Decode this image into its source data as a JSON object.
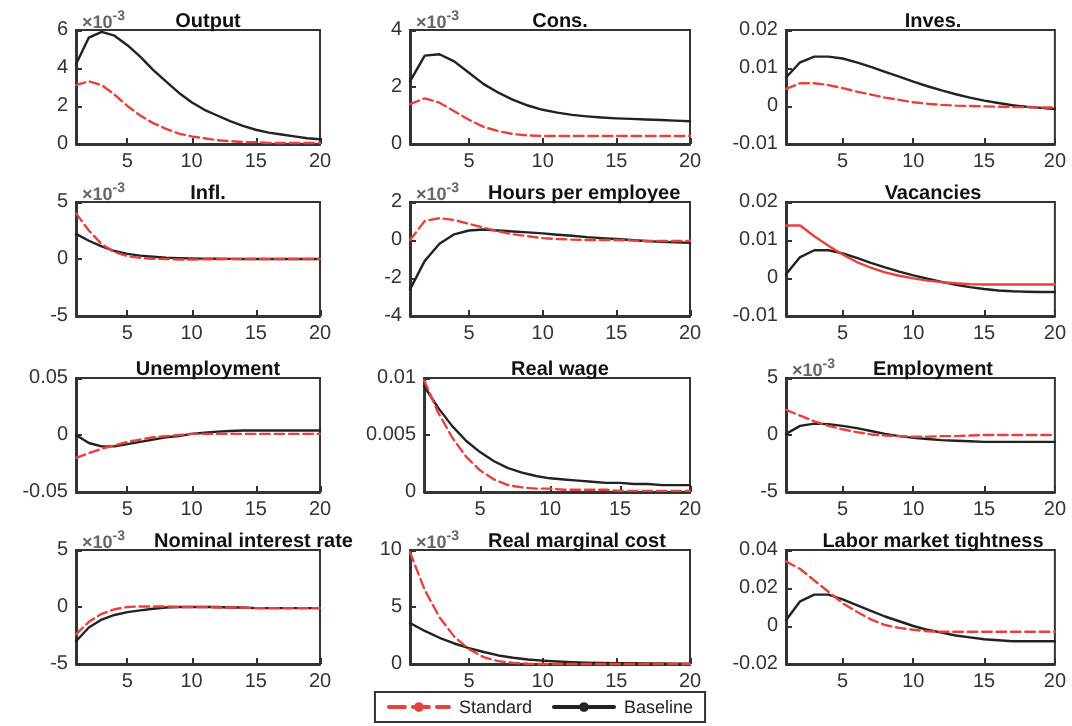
{
  "chart_data": [
    {
      "type": "line",
      "title": "Output",
      "annotations": [
        "×10$^{-3}$"
      ],
      "x": [
        1,
        2,
        3,
        4,
        5,
        6,
        7,
        8,
        9,
        10,
        11,
        12,
        13,
        14,
        15,
        16,
        17,
        18,
        19,
        20
      ],
      "xlim": [
        1,
        20
      ],
      "xticks": [
        5,
        10,
        15,
        20
      ],
      "ylim": [
        0,
        6
      ],
      "yticks": [
        0,
        2,
        4,
        6
      ],
      "marker": "none",
      "series": [
        {
          "color": "#e8413c",
          "line_style": "dashed",
          "values": [
            3.1,
            3.3,
            3.1,
            2.6,
            2.0,
            1.5,
            1.1,
            0.8,
            0.55,
            0.4,
            0.3,
            0.2,
            0.15,
            0.1,
            0.1,
            0.05,
            0.05,
            0.05,
            0.05,
            0.05
          ]
        },
        {
          "color": "#222222",
          "line_style": "solid",
          "values": [
            4.2,
            5.6,
            5.9,
            5.7,
            5.2,
            4.6,
            3.9,
            3.3,
            2.7,
            2.2,
            1.8,
            1.5,
            1.2,
            0.95,
            0.75,
            0.6,
            0.5,
            0.4,
            0.3,
            0.25
          ]
        }
      ]
    },
    {
      "type": "line",
      "title": "Cons.",
      "annotations": [
        "×10$^{-3}$"
      ],
      "x": [
        1,
        2,
        3,
        4,
        5,
        6,
        7,
        8,
        9,
        10,
        11,
        12,
        13,
        14,
        15,
        16,
        17,
        18,
        19,
        20
      ],
      "xlim": [
        1,
        20
      ],
      "xticks": [
        5,
        10,
        15,
        20
      ],
      "ylim": [
        0,
        4
      ],
      "yticks": [
        0,
        2,
        4
      ],
      "marker": "none",
      "series": [
        {
          "color": "#e8413c",
          "line_style": "dashed",
          "values": [
            1.4,
            1.6,
            1.45,
            1.15,
            0.85,
            0.6,
            0.45,
            0.35,
            0.3,
            0.28,
            0.28,
            0.28,
            0.28,
            0.28,
            0.28,
            0.28,
            0.28,
            0.28,
            0.28,
            0.28
          ]
        },
        {
          "color": "#222222",
          "line_style": "solid",
          "values": [
            2.2,
            3.1,
            3.15,
            2.9,
            2.5,
            2.1,
            1.8,
            1.55,
            1.35,
            1.2,
            1.1,
            1.02,
            0.97,
            0.93,
            0.9,
            0.88,
            0.86,
            0.84,
            0.82,
            0.8
          ]
        }
      ]
    },
    {
      "type": "line",
      "title": "Inves.",
      "x": [
        1,
        2,
        3,
        4,
        5,
        6,
        7,
        8,
        9,
        10,
        11,
        12,
        13,
        14,
        15,
        16,
        17,
        18,
        19,
        20
      ],
      "xlim": [
        1,
        20
      ],
      "xticks": [
        5,
        10,
        15,
        20
      ],
      "ylim": [
        -0.01,
        0.02
      ],
      "yticks": [
        -0.01,
        0,
        0.01,
        0.02
      ],
      "marker": "none",
      "series": [
        {
          "color": "#e8413c",
          "line_style": "dashed",
          "values": [
            0.0045,
            0.006,
            0.006,
            0.0055,
            0.0047,
            0.0038,
            0.003,
            0.0022,
            0.0016,
            0.001,
            0.0006,
            0.0003,
            0.0001,
            0,
            -0.0001,
            -0.0002,
            -0.0003,
            -0.0003,
            -0.0004,
            -0.0004
          ]
        },
        {
          "color": "#222222",
          "line_style": "solid",
          "values": [
            0.0075,
            0.0115,
            0.013,
            0.013,
            0.0125,
            0.0115,
            0.0103,
            0.009,
            0.0077,
            0.0064,
            0.0052,
            0.0041,
            0.0031,
            0.0022,
            0.0014,
            0.0008,
            0.0002,
            -0.0002,
            -0.0005,
            -0.0008
          ]
        }
      ]
    },
    {
      "type": "line",
      "title": "Infl.",
      "annotations": [
        "×10$^{-3}$"
      ],
      "x": [
        1,
        2,
        3,
        4,
        5,
        6,
        7,
        8,
        9,
        10,
        11,
        12,
        13,
        14,
        15,
        16,
        17,
        18,
        19,
        20
      ],
      "xlim": [
        1,
        20
      ],
      "xticks": [
        5,
        10,
        15,
        20
      ],
      "ylim": [
        -5,
        5
      ],
      "yticks": [
        -5,
        0,
        5
      ],
      "marker": "none",
      "series": [
        {
          "color": "#e8413c",
          "line_style": "dashed",
          "values": [
            4.0,
            2.5,
            1.3,
            0.6,
            0.25,
            0.1,
            0.02,
            0,
            -0.05,
            -0.05,
            -0.03,
            -0.02,
            0,
            0,
            0,
            0,
            0,
            0,
            0,
            0
          ]
        },
        {
          "color": "#222222",
          "line_style": "solid",
          "values": [
            2.2,
            1.6,
            1.1,
            0.7,
            0.45,
            0.3,
            0.2,
            0.12,
            0.08,
            0.05,
            0.03,
            0.02,
            0.01,
            0,
            0,
            0,
            0,
            0,
            0,
            0
          ]
        }
      ]
    },
    {
      "type": "line",
      "title": "Hours per employee",
      "annotations": [
        "×10$^{-3}$"
      ],
      "x": [
        1,
        2,
        3,
        4,
        5,
        6,
        7,
        8,
        9,
        10,
        11,
        12,
        13,
        14,
        15,
        16,
        17,
        18,
        19,
        20
      ],
      "xlim": [
        1,
        20
      ],
      "xticks": [
        5,
        10,
        15,
        20
      ],
      "ylim": [
        -4,
        2
      ],
      "yticks": [
        -4,
        -2,
        0,
        2
      ],
      "marker": "none",
      "series": [
        {
          "color": "#e8413c",
          "line_style": "dashed",
          "values": [
            0,
            1.0,
            1.15,
            1.05,
            0.85,
            0.65,
            0.45,
            0.3,
            0.2,
            0.1,
            0.05,
            0.02,
            0,
            0,
            0,
            -0.02,
            -0.05,
            -0.05,
            -0.05,
            -0.05
          ]
        },
        {
          "color": "#222222",
          "line_style": "solid",
          "values": [
            -2.6,
            -1.1,
            -0.2,
            0.3,
            0.5,
            0.55,
            0.5,
            0.45,
            0.4,
            0.35,
            0.28,
            0.22,
            0.15,
            0.1,
            0.05,
            0,
            -0.05,
            -0.1,
            -0.12,
            -0.15
          ]
        }
      ]
    },
    {
      "type": "line",
      "title": "Vacancies",
      "x": [
        1,
        2,
        3,
        4,
        5,
        6,
        7,
        8,
        9,
        10,
        11,
        12,
        13,
        14,
        15,
        16,
        17,
        18,
        19,
        20
      ],
      "xlim": [
        1,
        20
      ],
      "xticks": [
        5,
        10,
        15,
        20
      ],
      "ylim": [
        -0.01,
        0.02
      ],
      "yticks": [
        -0.01,
        0,
        0.01,
        0.02
      ],
      "marker": "none",
      "series": [
        {
          "color": "#e8413c",
          "line_style": "solid",
          "values": [
            0.0138,
            0.0138,
            0.011,
            0.0085,
            0.0062,
            0.0042,
            0.0027,
            0.0015,
            0.0006,
            -0.0001,
            -0.0007,
            -0.0011,
            -0.0014,
            -0.0016,
            -0.0017,
            -0.0017,
            -0.0017,
            -0.0017,
            -0.0017,
            -0.0017
          ]
        },
        {
          "color": "#222222",
          "line_style": "solid",
          "values": [
            0.001,
            0.0055,
            0.0073,
            0.0073,
            0.0065,
            0.0053,
            0.004,
            0.0028,
            0.0017,
            0.0007,
            -0.0002,
            -0.001,
            -0.0018,
            -0.0024,
            -0.0029,
            -0.0033,
            -0.0035,
            -0.0036,
            -0.0037,
            -0.0037
          ]
        }
      ]
    },
    {
      "type": "line",
      "title": "Unemployment",
      "x": [
        1,
        2,
        3,
        4,
        5,
        6,
        7,
        8,
        9,
        10,
        11,
        12,
        13,
        14,
        15,
        16,
        17,
        18,
        19,
        20
      ],
      "xlim": [
        1,
        20
      ],
      "xticks": [
        5,
        10,
        15,
        20
      ],
      "ylim": [
        -0.05,
        0.05
      ],
      "yticks": [
        -0.05,
        0,
        0.05
      ],
      "marker": "none",
      "series": [
        {
          "color": "#e8413c",
          "line_style": "dashed",
          "values": [
            -0.02,
            -0.016,
            -0.012,
            -0.009,
            -0.006,
            -0.004,
            -0.002,
            -0.001,
            0,
            0.001,
            0.001,
            0.001,
            0.001,
            0.001,
            0.001,
            0.001,
            0.001,
            0.001,
            0.001,
            0.001
          ]
        },
        {
          "color": "#222222",
          "line_style": "solid",
          "values": [
            0,
            -0.007,
            -0.01,
            -0.01,
            -0.008,
            -0.006,
            -0.004,
            -0.002,
            -0.001,
            0.001,
            0.002,
            0.003,
            0.0035,
            0.004,
            0.004,
            0.004,
            0.004,
            0.004,
            0.004,
            0.004
          ]
        }
      ]
    },
    {
      "type": "line",
      "title": "Real wage",
      "x": [
        1,
        2,
        3,
        4,
        5,
        6,
        7,
        8,
        9,
        10,
        11,
        12,
        13,
        14,
        15,
        16,
        17,
        18,
        19,
        20
      ],
      "xlim": [
        1,
        20
      ],
      "xticks": [
        5,
        10,
        15,
        20
      ],
      "ylim": [
        0,
        0.01
      ],
      "yticks": [
        0,
        0.005,
        0.01
      ],
      "marker": "none",
      "series": [
        {
          "color": "#e8413c",
          "line_style": "dashed",
          "values": [
            0.0098,
            0.007,
            0.0048,
            0.0031,
            0.0019,
            0.0011,
            0.0006,
            0.0004,
            0.0003,
            0.0003,
            0.0002,
            0.0002,
            0.0002,
            0.0002,
            0.0001,
            0.0001,
            0.0001,
            0.0001,
            0.0001,
            0.0001
          ]
        },
        {
          "color": "#222222",
          "line_style": "solid",
          "values": [
            0.0093,
            0.0074,
            0.0058,
            0.0045,
            0.0035,
            0.0027,
            0.0021,
            0.0017,
            0.0014,
            0.0012,
            0.0011,
            0.001,
            0.0009,
            0.0008,
            0.0008,
            0.0007,
            0.0007,
            0.0006,
            0.0006,
            0.0006
          ]
        }
      ]
    },
    {
      "type": "line",
      "title": "Employment",
      "annotations": [
        "×10$^{-3}$"
      ],
      "x": [
        1,
        2,
        3,
        4,
        5,
        6,
        7,
        8,
        9,
        10,
        11,
        12,
        13,
        14,
        15,
        16,
        17,
        18,
        19,
        20
      ],
      "xlim": [
        1,
        20
      ],
      "xticks": [
        5,
        10,
        15,
        20
      ],
      "ylim": [
        -5,
        5
      ],
      "yticks": [
        -5,
        0,
        5
      ],
      "marker": "none",
      "series": [
        {
          "color": "#e8413c",
          "line_style": "dashed",
          "values": [
            2.2,
            1.7,
            1.2,
            0.8,
            0.5,
            0.25,
            0.05,
            -0.05,
            -0.1,
            -0.15,
            -0.15,
            -0.1,
            -0.1,
            -0.05,
            0,
            0,
            0,
            0,
            0,
            0
          ]
        },
        {
          "color": "#222222",
          "line_style": "solid",
          "values": [
            0.1,
            0.8,
            1.0,
            0.95,
            0.8,
            0.6,
            0.35,
            0.1,
            -0.1,
            -0.25,
            -0.35,
            -0.45,
            -0.5,
            -0.55,
            -0.6,
            -0.6,
            -0.6,
            -0.6,
            -0.6,
            -0.6
          ]
        }
      ]
    },
    {
      "type": "line",
      "title": "Nominal interest rate",
      "annotations": [
        "×10$^{-3}$"
      ],
      "x": [
        1,
        2,
        3,
        4,
        5,
        6,
        7,
        8,
        9,
        10,
        11,
        12,
        13,
        14,
        15,
        16,
        17,
        18,
        19,
        20
      ],
      "xlim": [
        1,
        20
      ],
      "xticks": [
        5,
        10,
        15,
        20
      ],
      "ylim": [
        -5,
        5
      ],
      "yticks": [
        -5,
        0,
        5
      ],
      "marker": "none",
      "series": [
        {
          "color": "#e8413c",
          "line_style": "dashed",
          "values": [
            -2.4,
            -1.3,
            -0.6,
            -0.2,
            0,
            0.05,
            0.05,
            0.05,
            0,
            0,
            0,
            -0.05,
            -0.05,
            -0.05,
            -0.1,
            -0.1,
            -0.1,
            -0.1,
            -0.1,
            -0.1
          ]
        },
        {
          "color": "#222222",
          "line_style": "solid",
          "values": [
            -3.0,
            -1.8,
            -1.1,
            -0.7,
            -0.45,
            -0.3,
            -0.15,
            -0.05,
            0,
            0,
            0,
            0,
            -0.05,
            -0.05,
            -0.1,
            -0.1,
            -0.1,
            -0.1,
            -0.1,
            -0.1
          ]
        }
      ]
    },
    {
      "type": "line",
      "title": "Real marginal cost",
      "annotations": [
        "×10$^{-3}$"
      ],
      "x": [
        1,
        2,
        3,
        4,
        5,
        6,
        7,
        8,
        9,
        10,
        11,
        12,
        13,
        14,
        15,
        16,
        17,
        18,
        19,
        20
      ],
      "xlim": [
        1,
        20
      ],
      "xticks": [
        5,
        10,
        15,
        20
      ],
      "ylim": [
        0,
        10
      ],
      "yticks": [
        0,
        5,
        10
      ],
      "marker": "none",
      "legend": "bottom",
      "series": [
        {
          "name": "Standard",
          "color": "#e8413c",
          "line_style": "dashed",
          "values": [
            9.8,
            6.5,
            4.1,
            2.4,
            1.3,
            0.6,
            0.25,
            0.1,
            0.02,
            0,
            0,
            0,
            0,
            0,
            0,
            0,
            0,
            0,
            0,
            0
          ]
        },
        {
          "name": "Baseline",
          "color": "#222222",
          "line_style": "solid",
          "values": [
            3.6,
            2.9,
            2.3,
            1.8,
            1.4,
            1.05,
            0.75,
            0.55,
            0.4,
            0.3,
            0.22,
            0.16,
            0.12,
            0.1,
            0.08,
            0.06,
            0.05,
            0.04,
            0.03,
            0.02
          ]
        }
      ]
    },
    {
      "type": "line",
      "title": "Labor market tightness",
      "x": [
        1,
        2,
        3,
        4,
        5,
        6,
        7,
        8,
        9,
        10,
        11,
        12,
        13,
        14,
        15,
        16,
        17,
        18,
        19,
        20
      ],
      "xlim": [
        1,
        20
      ],
      "xticks": [
        5,
        10,
        15,
        20
      ],
      "ylim": [
        -0.02,
        0.04
      ],
      "yticks": [
        -0.02,
        0,
        0.02,
        0.04
      ],
      "marker": "none",
      "series": [
        {
          "color": "#e8413c",
          "line_style": "dashed",
          "values": [
            0.034,
            0.03,
            0.024,
            0.018,
            0.012,
            0.0075,
            0.0035,
            0.0005,
            -0.001,
            -0.002,
            -0.0028,
            -0.003,
            -0.003,
            -0.003,
            -0.003,
            -0.003,
            -0.003,
            -0.003,
            -0.003,
            -0.003
          ]
        },
        {
          "color": "#222222",
          "line_style": "solid",
          "values": [
            0.003,
            0.013,
            0.0165,
            0.0165,
            0.014,
            0.011,
            0.008,
            0.005,
            0.0025,
            0,
            -0.002,
            -0.0035,
            -0.005,
            -0.006,
            -0.007,
            -0.0075,
            -0.008,
            -0.008,
            -0.008,
            -0.008
          ]
        }
      ]
    }
  ]
}
